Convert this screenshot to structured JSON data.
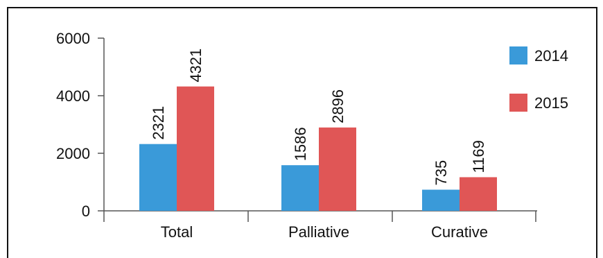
{
  "chart_data": {
    "type": "bar",
    "categories": [
      "Total",
      "Palliative",
      "Curative"
    ],
    "series": [
      {
        "name": "2014",
        "values": [
          2321,
          1586,
          735
        ],
        "labels": [
          "2321",
          "1586",
          "735"
        ],
        "color": "#3a9ad9"
      },
      {
        "name": "2015",
        "values": [
          4321,
          2896,
          1169
        ],
        "labels": [
          "4321",
          "2896",
          "1169"
        ],
        "color": "#e05656"
      }
    ],
    "ylim": [
      0,
      6000
    ],
    "yticks": [
      0,
      2000,
      4000,
      6000
    ],
    "ytick_labels": [
      "0",
      "2000",
      "4000",
      "6000"
    ],
    "title": "",
    "xlabel": "",
    "ylabel": "",
    "grid": false,
    "legend_position": "right"
  }
}
